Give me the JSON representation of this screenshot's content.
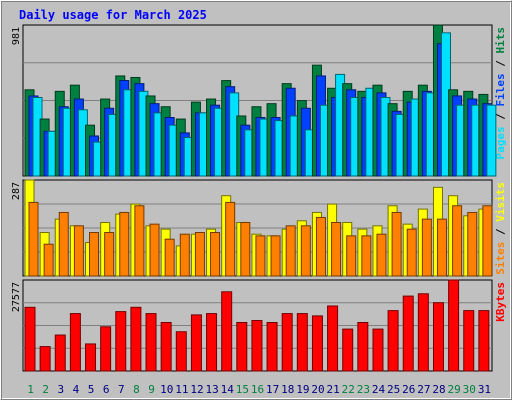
{
  "title": "Daily usage for March 2025",
  "colors": {
    "background": "#c0c0c0",
    "plot_background": "#c0c0c0",
    "title": "#0000ff",
    "hits": "#008040",
    "files": "#0040ff",
    "pages": "#00e0ff",
    "visits": "#ffff00",
    "sites": "#ff8000",
    "kbytes": "#ff0000",
    "weekend_day": "#008040",
    "weekday": "#000080",
    "grid": "#808080",
    "axis_text": "#000000"
  },
  "chart_data": [
    {
      "type": "bar",
      "panel": "hits-files-pages",
      "ymax_label": "981",
      "ymax": 981,
      "label_parts": [
        "Pages",
        "Files",
        "Hits"
      ],
      "grid": true,
      "x": [
        1,
        2,
        3,
        4,
        5,
        6,
        7,
        8,
        9,
        10,
        11,
        12,
        13,
        14,
        15,
        16,
        17,
        18,
        19,
        20,
        21,
        22,
        23,
        24,
        25,
        26,
        27,
        28,
        29,
        30,
        31
      ],
      "series": [
        {
          "key": "hits",
          "values": [
            560,
            370,
            550,
            590,
            330,
            500,
            650,
            640,
            520,
            450,
            370,
            480,
            500,
            620,
            390,
            450,
            470,
            600,
            490,
            720,
            570,
            600,
            550,
            590,
            470,
            550,
            590,
            980,
            560,
            550,
            530
          ]
        },
        {
          "key": "files",
          "values": [
            520,
            290,
            450,
            500,
            260,
            440,
            620,
            600,
            470,
            380,
            280,
            410,
            460,
            580,
            330,
            380,
            380,
            570,
            440,
            650,
            510,
            560,
            510,
            540,
            420,
            480,
            550,
            860,
            520,
            500,
            470
          ]
        },
        {
          "key": "pages",
          "values": [
            510,
            290,
            440,
            430,
            220,
            400,
            560,
            550,
            410,
            330,
            250,
            410,
            440,
            540,
            300,
            370,
            360,
            390,
            300,
            460,
            660,
            510,
            570,
            510,
            400,
            500,
            540,
            930,
            460,
            460,
            460
          ]
        }
      ]
    },
    {
      "type": "bar",
      "panel": "visits-sites",
      "ymax_label": "287",
      "ymax": 287,
      "label_parts": [
        "Sites",
        "Visits"
      ],
      "grid": true,
      "x": [
        1,
        2,
        3,
        4,
        5,
        6,
        7,
        8,
        9,
        10,
        11,
        12,
        13,
        14,
        15,
        16,
        17,
        18,
        19,
        20,
        21,
        22,
        23,
        24,
        25,
        26,
        27,
        28,
        29,
        30,
        31
      ],
      "series": [
        {
          "key": "visits",
          "values": [
            287,
            130,
            170,
            150,
            100,
            160,
            185,
            215,
            150,
            140,
            90,
            125,
            140,
            240,
            160,
            125,
            120,
            140,
            165,
            190,
            215,
            160,
            140,
            150,
            210,
            155,
            200,
            265,
            240,
            180,
            200
          ]
        },
        {
          "key": "sites",
          "values": [
            220,
            95,
            190,
            150,
            130,
            130,
            190,
            210,
            155,
            110,
            125,
            130,
            130,
            220,
            160,
            120,
            120,
            150,
            150,
            175,
            160,
            120,
            120,
            125,
            190,
            140,
            170,
            170,
            210,
            190,
            210
          ]
        }
      ]
    },
    {
      "type": "bar",
      "panel": "kbytes",
      "ymax_label": "27577",
      "ymax": 27577,
      "label_parts": [
        "KBytes"
      ],
      "grid": true,
      "x": [
        1,
        2,
        3,
        4,
        5,
        6,
        7,
        8,
        9,
        10,
        11,
        12,
        13,
        14,
        15,
        16,
        17,
        18,
        19,
        20,
        21,
        22,
        23,
        24,
        25,
        26,
        27,
        28,
        29,
        30,
        31
      ],
      "series": [
        {
          "key": "kbytes",
          "values": [
            19300,
            7400,
            10900,
            17400,
            8200,
            13400,
            18000,
            19300,
            17400,
            14700,
            11900,
            17000,
            17400,
            24000,
            14700,
            15300,
            14700,
            17400,
            17400,
            16700,
            19700,
            12700,
            14700,
            12700,
            18300,
            22700,
            23400,
            20700,
            27577,
            18300,
            18300
          ]
        }
      ]
    }
  ]
}
